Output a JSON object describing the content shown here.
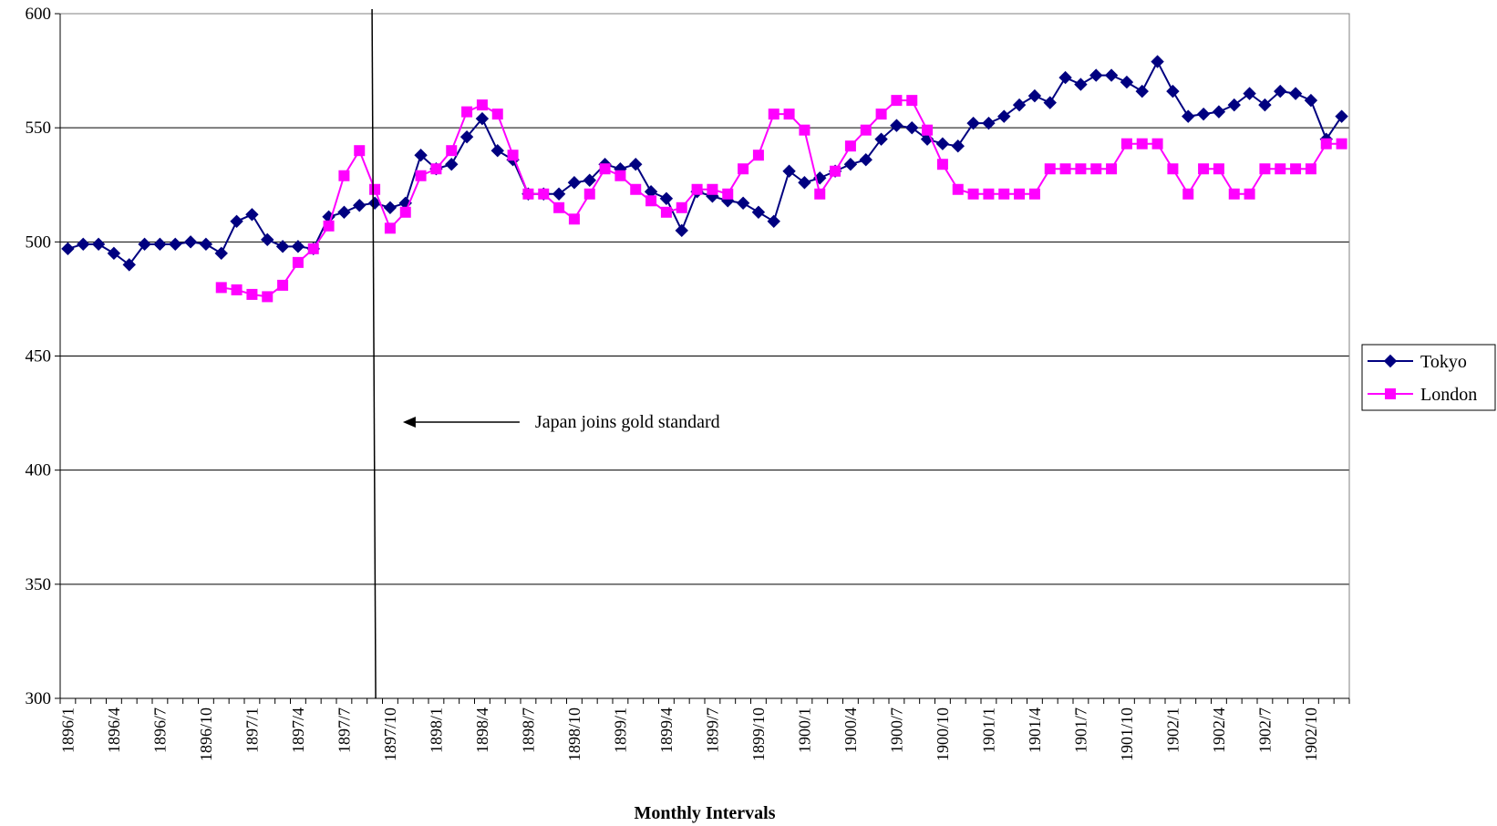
{
  "chart_data": {
    "type": "line",
    "title": "",
    "xlabel": "Monthly Intervals",
    "ylabel": "",
    "ylim": [
      300,
      600
    ],
    "yticks": [
      300,
      350,
      400,
      450,
      500,
      550,
      600
    ],
    "grid": "horizontal",
    "legend_position": "right",
    "x_start": "1896/1",
    "x_count": 84,
    "x_tick_labels": [
      "1896/1",
      "1896/4",
      "1896/7",
      "1896/10",
      "1897/1",
      "1897/4",
      "1897/7",
      "1897/10",
      "1898/1",
      "1898/4",
      "1898/7",
      "1898/10",
      "1899/1",
      "1899/4",
      "1899/7",
      "1899/10",
      "1900/1",
      "1900/4",
      "1900/7",
      "1900/10",
      "1901/1",
      "1901/4",
      "1901/7",
      "1901/10",
      "1902/1",
      "1902/4",
      "1902/7",
      "1902/10"
    ],
    "series": [
      {
        "name": "Tokyo",
        "color": "#000080",
        "marker": "diamond",
        "values": [
          497,
          499,
          499,
          495,
          490,
          499,
          499,
          499,
          500,
          499,
          495,
          509,
          512,
          501,
          498,
          498,
          497,
          511,
          513,
          516,
          517,
          515,
          517,
          538,
          532,
          534,
          546,
          554,
          540,
          536,
          521,
          521,
          521,
          526,
          527,
          534,
          532,
          534,
          522,
          519,
          505,
          522,
          520,
          518,
          517,
          513,
          509,
          531,
          526,
          528,
          531,
          534,
          536,
          545,
          551,
          550,
          545,
          543,
          542,
          552,
          552,
          555,
          560,
          564,
          561,
          572,
          569,
          573,
          573,
          570,
          566,
          579,
          566,
          555,
          556,
          557,
          560,
          565,
          560,
          566,
          565,
          562,
          545,
          555
        ]
      },
      {
        "name": "London",
        "color": "#FF00FF",
        "marker": "square",
        "values": [
          null,
          null,
          null,
          null,
          null,
          null,
          null,
          null,
          null,
          null,
          480,
          479,
          477,
          476,
          481,
          491,
          497,
          507,
          529,
          540,
          523,
          506,
          513,
          529,
          532,
          540,
          557,
          560,
          556,
          538,
          521,
          521,
          515,
          510,
          521,
          532,
          529,
          523,
          518,
          513,
          515,
          523,
          523,
          521,
          532,
          538,
          556,
          556,
          549,
          521,
          531,
          542,
          549,
          556,
          562,
          562,
          549,
          534,
          523,
          521,
          521,
          521,
          521,
          521,
          532,
          532,
          532,
          532,
          532,
          543,
          543,
          543,
          532,
          521,
          532,
          532,
          521,
          521,
          532,
          532,
          532,
          532,
          543,
          543
        ]
      }
    ],
    "annotations": [
      {
        "text": "Japan joins gold standard",
        "points_to": "1897/10"
      }
    ],
    "vertical_marker_at": "1897/9"
  }
}
